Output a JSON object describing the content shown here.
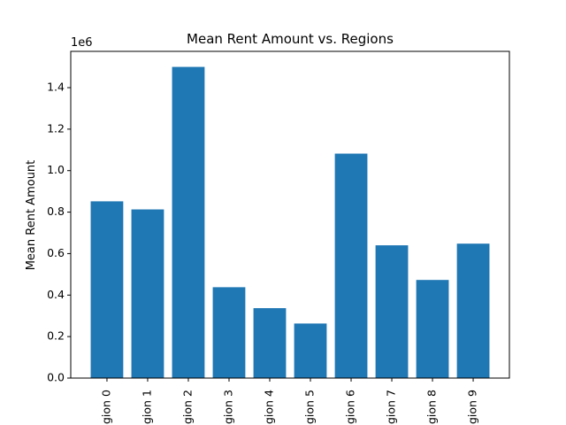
{
  "chart_data": {
    "type": "bar",
    "title": "Mean Rent Amount vs. Regions",
    "xlabel": "",
    "ylabel": "Mean Rent Amount",
    "y_offset_label": "1e6",
    "categories": [
      "gion 0",
      "gion 1",
      "gion 2",
      "gion 3",
      "gion 4",
      "gion 5",
      "gion 6",
      "gion 7",
      "gion 8",
      "gion 9"
    ],
    "values": [
      852000,
      813000,
      1500000,
      438000,
      337000,
      263000,
      1082000,
      640000,
      473000,
      648000
    ],
    "ylim": [
      0,
      1575000
    ],
    "yticks": [
      0,
      200000,
      400000,
      600000,
      800000,
      1000000,
      1200000,
      1400000
    ],
    "ytick_labels": [
      "0.0",
      "0.2",
      "0.4",
      "0.6",
      "0.8",
      "1.0",
      "1.2",
      "1.4"
    ],
    "bar_color": "#1f77b4",
    "grid": false,
    "legend": "none"
  }
}
